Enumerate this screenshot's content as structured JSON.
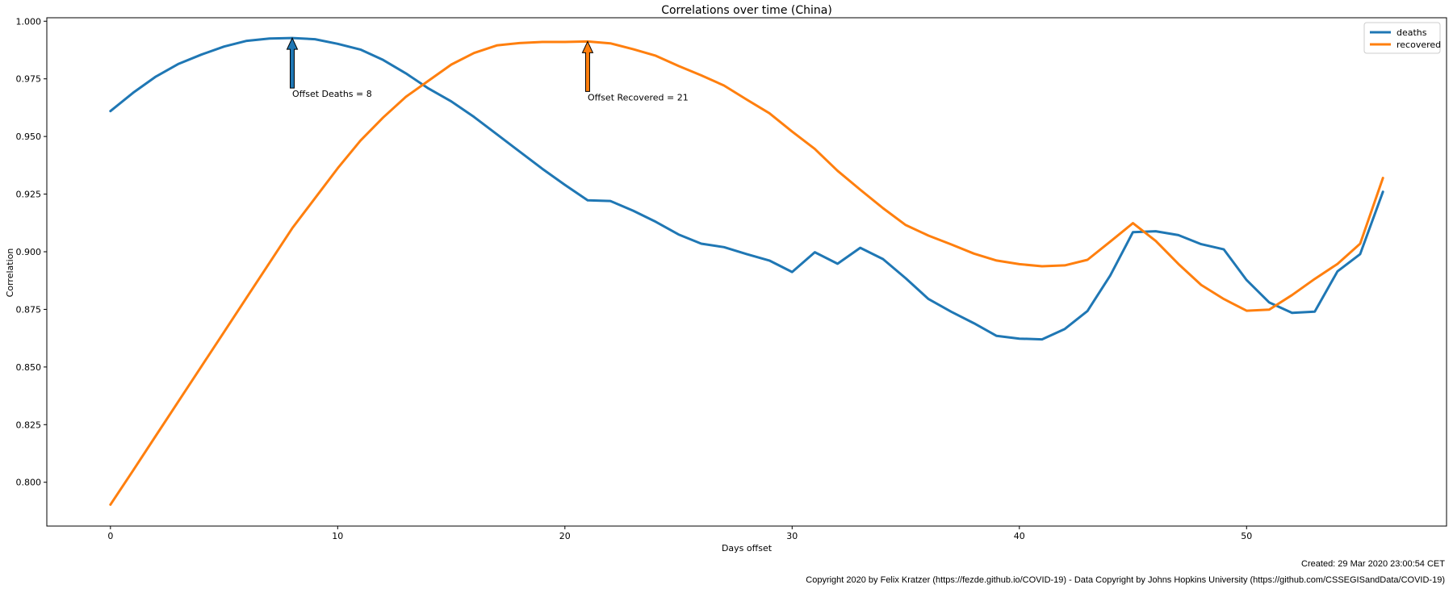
{
  "chart_data": {
    "type": "line",
    "title": "Correlations over time (China)",
    "xlabel": "Days offset",
    "ylabel": "Correlation",
    "xlim": [
      -2.8,
      58.8
    ],
    "ylim": [
      0.781,
      1.0015
    ],
    "xticks": [
      0,
      10,
      20,
      30,
      40,
      50
    ],
    "xtick_labels": [
      "0",
      "10",
      "20",
      "30",
      "40",
      "50"
    ],
    "yticks": [
      0.8,
      0.825,
      0.85,
      0.875,
      0.9,
      0.925,
      0.95,
      0.975,
      1.0
    ],
    "ytick_labels": [
      "0.800",
      "0.825",
      "0.850",
      "0.875",
      "0.900",
      "0.925",
      "0.950",
      "0.975",
      "1.000"
    ],
    "grid": false,
    "legend_position": "top-right",
    "x": [
      0,
      1,
      2,
      3,
      4,
      5,
      6,
      7,
      8,
      9,
      10,
      11,
      12,
      13,
      14,
      15,
      16,
      17,
      18,
      19,
      20,
      21,
      22,
      23,
      24,
      25,
      26,
      27,
      28,
      29,
      30,
      31,
      32,
      33,
      34,
      35,
      36,
      37,
      38,
      39,
      40,
      41,
      42,
      43,
      44,
      45,
      46,
      47,
      48,
      49,
      50,
      51,
      52,
      53,
      54,
      55,
      56
    ],
    "series": [
      {
        "name": "deaths",
        "color": "#1f77b4",
        "values": [
          0.961,
          0.969,
          0.976,
          0.9815,
          0.9855,
          0.989,
          0.9915,
          0.9925,
          0.9927,
          0.9922,
          0.9902,
          0.9877,
          0.9832,
          0.9774,
          0.9708,
          0.9652,
          0.9585,
          0.951,
          0.9435,
          0.936,
          0.929,
          0.9223,
          0.922,
          0.9178,
          0.913,
          0.9075,
          0.9035,
          0.902,
          0.899,
          0.8962,
          0.8912,
          0.8998,
          0.8948,
          0.9017,
          0.8968,
          0.8885,
          0.8795,
          0.874,
          0.869,
          0.8635,
          0.8623,
          0.862,
          0.8665,
          0.8743,
          0.8897,
          0.9085,
          0.9089,
          0.9072,
          0.9033,
          0.901,
          0.8877,
          0.878,
          0.8735,
          0.874,
          0.8915,
          0.899,
          0.926
        ]
      },
      {
        "name": "recovered",
        "color": "#ff7f0e",
        "values": [
          0.7903,
          0.8052,
          0.8202,
          0.8352,
          0.8502,
          0.8652,
          0.8802,
          0.8952,
          0.9102,
          0.9232,
          0.9362,
          0.9482,
          0.9582,
          0.9672,
          0.9742,
          0.9812,
          0.9862,
          0.9895,
          0.9905,
          0.991,
          0.991,
          0.9912,
          0.9904,
          0.9879,
          0.985,
          0.9806,
          0.9765,
          0.9721,
          0.966,
          0.9601,
          0.9521,
          0.9446,
          0.9351,
          0.9269,
          0.9189,
          0.9116,
          0.907,
          0.9032,
          0.8992,
          0.8962,
          0.8946,
          0.8937,
          0.8941,
          0.8965,
          0.9044,
          0.9124,
          0.9047,
          0.8947,
          0.8856,
          0.8795,
          0.8744,
          0.8749,
          0.8812,
          0.8882,
          0.8947,
          0.9035,
          0.932
        ]
      }
    ],
    "annotations": [
      {
        "text": "Offset Deaths = 8",
        "x": 8,
        "y": 0.9927,
        "color": "#1f77b4"
      },
      {
        "text": "Offset Recovered = 21",
        "x": 21,
        "y": 0.9912,
        "color": "#ff7f0e"
      }
    ]
  },
  "footer": {
    "created": "Created: 29 Mar 2020 23:00:54 CET",
    "copyright": "Copyright 2020 by Felix Kratzer (https://fezde.github.io/COVID-19) - Data Copyright by Johns Hopkins University (https://github.com/CSSEGISandData/COVID-19)"
  }
}
